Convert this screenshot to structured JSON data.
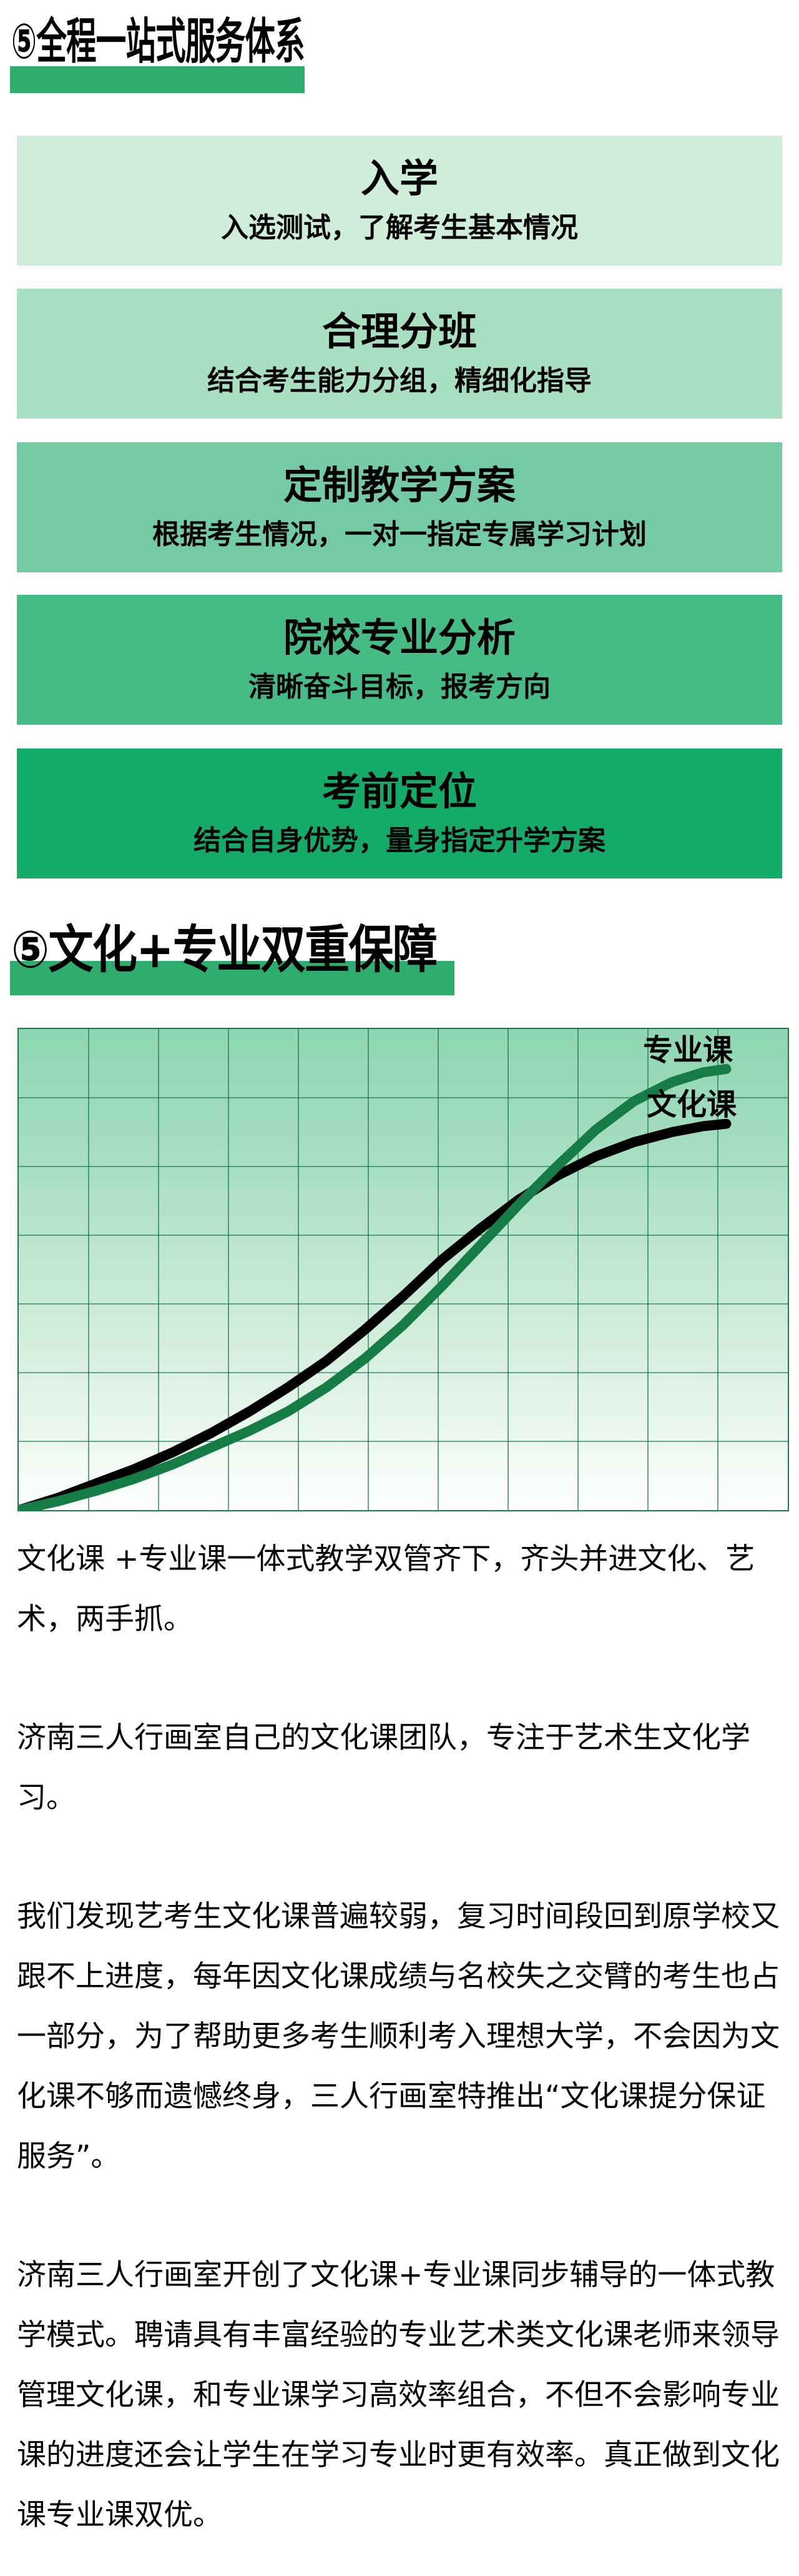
{
  "header1": {
    "text": "⑤全程一站式服务体系",
    "bar_color": "#2fad6e"
  },
  "service_steps": [
    {
      "title": "入学",
      "subtitle": "入选测试，了解考生基本情况",
      "bg": "#cfeeda"
    },
    {
      "title": "合理分班",
      "subtitle": "结合考生能力分组，精细化指导",
      "bg": "#a9dfc1"
    },
    {
      "title": "定制教学方案",
      "subtitle": "根据考生情况，一对一指定专属学习计划",
      "bg": "#72cba4"
    },
    {
      "title": "院校专业分析",
      "subtitle": "清晰奋斗目标，报考方向",
      "bg": "#45bc85"
    },
    {
      "title": "考前定位",
      "subtitle": "结合自身优势，量身指定升学方案",
      "bg": "#14aa67"
    }
  ],
  "header2": {
    "text": "⑤文化+专业双重保障",
    "bar_color": "#2fad6e"
  },
  "chart_data": {
    "type": "line",
    "title": "",
    "xlabel": "",
    "ylabel": "",
    "axis_tick_labels": "none",
    "grid": {
      "on": true,
      "cols": 11,
      "rows": 7,
      "line_color": "#1d7a4f"
    },
    "background_gradient": [
      "#8ed6b1",
      "#fdfffd"
    ],
    "legend_position": "labels-at-line-ends-top-right",
    "x_range_pct": [
      0,
      100
    ],
    "y_range_pct": [
      0,
      100
    ],
    "series": [
      {
        "name": "专业课",
        "color": "#157c46",
        "stroke_width": 16,
        "points_pct": [
          [
            0,
            0
          ],
          [
            5,
            1.8
          ],
          [
            10,
            4
          ],
          [
            15,
            6.5
          ],
          [
            20,
            9.5
          ],
          [
            25,
            13
          ],
          [
            30,
            16.5
          ],
          [
            35,
            20.5
          ],
          [
            40,
            25.5
          ],
          [
            45,
            31.5
          ],
          [
            50,
            38.5
          ],
          [
            55,
            46.5
          ],
          [
            60,
            55
          ],
          [
            65,
            63.5
          ],
          [
            70,
            71.5
          ],
          [
            75,
            79
          ],
          [
            80,
            85
          ],
          [
            85,
            89
          ],
          [
            89,
            91
          ],
          [
            92,
            91.7
          ]
        ]
      },
      {
        "name": "文化课",
        "color": "#000000",
        "stroke_width": 16,
        "points_pct": [
          [
            0,
            0
          ],
          [
            5,
            2.5
          ],
          [
            10,
            5.5
          ],
          [
            15,
            8.5
          ],
          [
            20,
            12
          ],
          [
            25,
            16
          ],
          [
            30,
            20.5
          ],
          [
            35,
            25.5
          ],
          [
            40,
            31
          ],
          [
            45,
            37.5
          ],
          [
            50,
            44.5
          ],
          [
            55,
            52
          ],
          [
            60,
            58.5
          ],
          [
            65,
            64.5
          ],
          [
            70,
            69.5
          ],
          [
            75,
            73.5
          ],
          [
            80,
            76.5
          ],
          [
            85,
            78.6
          ],
          [
            89,
            79.8
          ],
          [
            92,
            80.3
          ]
        ]
      }
    ],
    "annotation": "专业课 curve rises later but ends higher than 文化课; curves cross near 68% of x-range"
  },
  "paragraphs": [
    "文化课 +专业课一体式教学双管齐下，齐头并进文化、艺术，两手抓。",
    "济南三人行画室自己的文化课团队，专注于艺术生文化学习。",
    "我们发现艺考生文化课普遍较弱，复习时间段回到原学校又跟不上进度，每年因文化课成绩与名校失之交臂的考生也占一部分，为了帮助更多考生顺利考入理想大学，不会因为文化课不够而遗憾终身，三人行画室特推出“文化课提分保证服务”。",
    "济南三人行画室开创了文化课+专业课同步辅导的一体式教学模式。聘请具有丰富经验的专业艺术类文化课老师来领导管理文化课，和专业课学习高效率组合，不但不会影响专业课的进度还会让学生在学习专业时更有效率。真正做到文化课专业课双优。"
  ]
}
